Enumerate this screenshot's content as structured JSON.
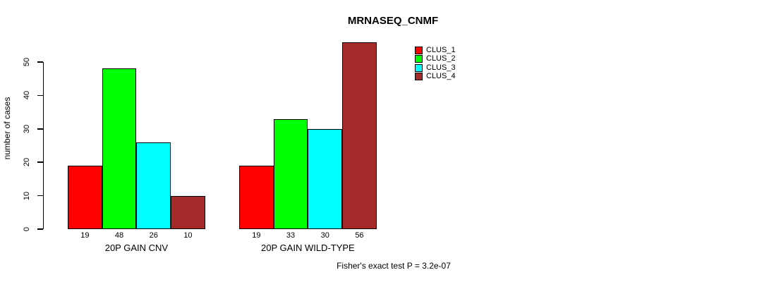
{
  "chart_data": {
    "type": "bar",
    "title": "MRNASEQ_CNMF",
    "categories": [
      "20P GAIN CNV",
      "20P GAIN WILD-TYPE"
    ],
    "series": [
      {
        "name": "CLUS_1",
        "color": "#FF0000",
        "values": [
          19,
          19
        ]
      },
      {
        "name": "CLUS_2",
        "color": "#00FF00",
        "values": [
          48,
          33
        ]
      },
      {
        "name": "CLUS_3",
        "color": "#00FFFF",
        "values": [
          26,
          30
        ]
      },
      {
        "name": "CLUS_4",
        "color": "#A52A2A",
        "values": [
          10,
          56
        ]
      }
    ],
    "xlabel": "",
    "ylabel": "number of cases",
    "ylim": [
      0,
      56
    ],
    "yticks": [
      0,
      10,
      20,
      30,
      40,
      50
    ],
    "grid": false,
    "bar_value_labels": true,
    "legend_position": "top-right",
    "annotation": "Fisher's exact test P = 3.2e-07"
  }
}
